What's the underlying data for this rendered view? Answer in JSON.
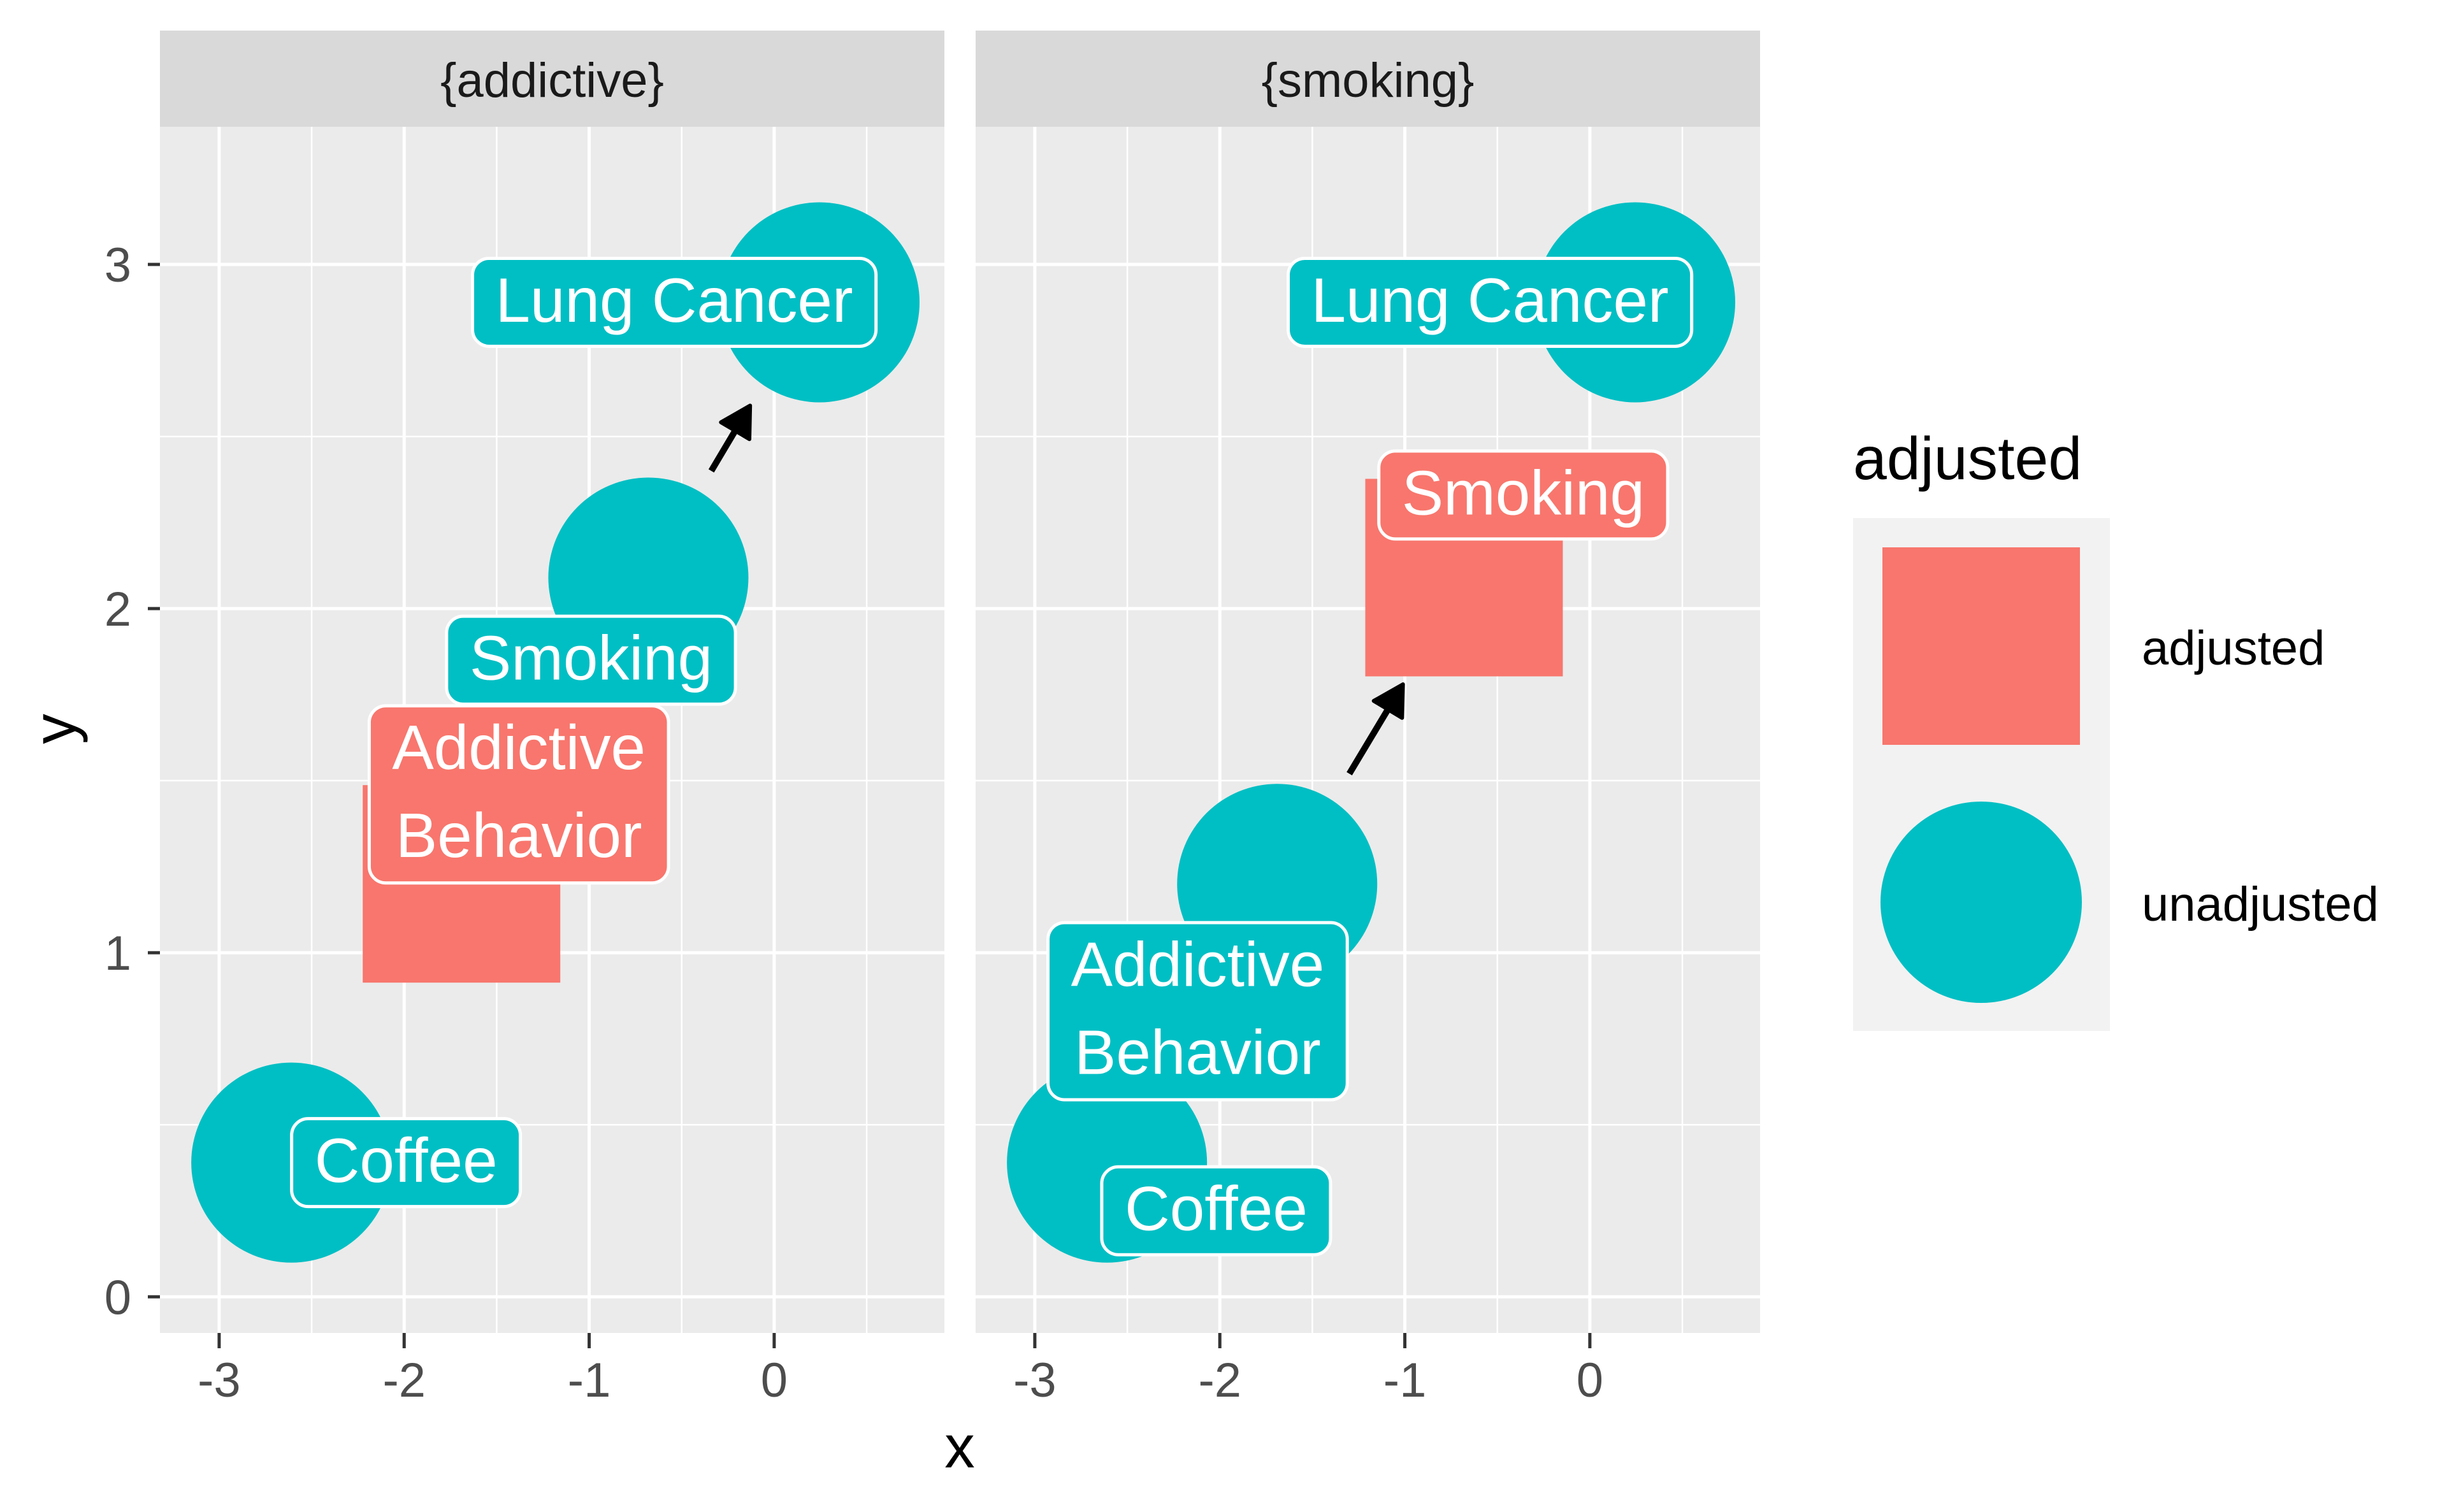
{
  "chart_data": {
    "type": "scatter",
    "subtype": "faceted DAG plot (ggdag adjustment sets)",
    "title": "",
    "xlabel": "x",
    "ylabel": "y",
    "xlim": [
      -3.32,
      0.92
    ],
    "ylim": [
      -0.105,
      3.4
    ],
    "x_ticks": [
      -3,
      -2,
      -1,
      0
    ],
    "x_tick_labels": [
      "-3",
      "-2",
      "-1",
      "0"
    ],
    "y_ticks": [
      0,
      1,
      2,
      3
    ],
    "y_tick_labels": [
      "0",
      "1",
      "2",
      "3"
    ],
    "x_minor": [
      -2.5,
      -1.5,
      -0.5,
      0.5
    ],
    "y_minor": [
      0.5,
      1.5,
      2.5
    ],
    "grid": true,
    "legend": {
      "title": "adjusted",
      "position": "right",
      "entries": [
        {
          "label": "adjusted",
          "shape": "square",
          "color": "#F8766D"
        },
        {
          "label": "unadjusted",
          "shape": "circle",
          "color": "#00BFC4"
        }
      ]
    },
    "colors": {
      "adjusted": "#F8766D",
      "unadjusted": "#00BFC4"
    },
    "nodes": [
      {
        "id": "coffee",
        "name": "Coffee",
        "x": -2.61,
        "y": 0.39
      },
      {
        "id": "addictive",
        "name": "Addictive Behavior",
        "x": -1.69,
        "y": 1.2
      },
      {
        "id": "smoking",
        "name": "Smoking",
        "x": -0.68,
        "y": 2.09
      },
      {
        "id": "lung_cancer",
        "name": "Lung Cancer",
        "x": 0.245,
        "y": 2.89
      }
    ],
    "panels": [
      {
        "strip": "{addictive}",
        "adjusted_node": "addictive",
        "edges": [
          {
            "from": "smoking",
            "to": "lung_cancer",
            "x1": -0.34,
            "y1": 2.4,
            "x2": -0.13,
            "y2": 2.59
          }
        ],
        "labels": [
          {
            "node": "lung_cancer",
            "lines": [
              "Lung Cancer"
            ],
            "x": -0.54,
            "y": 2.89,
            "status": "unadjusted"
          },
          {
            "node": "smoking",
            "lines": [
              "Smoking"
            ],
            "x": -0.99,
            "y": 1.85,
            "status": "unadjusted"
          },
          {
            "node": "addictive",
            "lines": [
              "Addictive",
              "Behavior"
            ],
            "x": -1.38,
            "y": 1.46,
            "status": "adjusted"
          },
          {
            "node": "coffee",
            "lines": [
              "Coffee"
            ],
            "x": -1.99,
            "y": 0.39,
            "status": "unadjusted"
          }
        ]
      },
      {
        "strip": "{smoking}",
        "adjusted_node": "smoking",
        "edges": [
          {
            "from": "addictive",
            "to": "smoking",
            "x1": -1.3,
            "y1": 1.52,
            "x2": -1.01,
            "y2": 1.78
          }
        ],
        "labels": [
          {
            "node": "lung_cancer",
            "lines": [
              "Lung Cancer"
            ],
            "x": -0.54,
            "y": 2.89,
            "status": "unadjusted"
          },
          {
            "node": "smoking",
            "lines": [
              "Smoking"
            ],
            "x": -0.36,
            "y": 2.33,
            "status": "adjusted"
          },
          {
            "node": "addictive",
            "lines": [
              "Addictive",
              "Behavior"
            ],
            "x": -2.12,
            "y": 0.83,
            "status": "unadjusted"
          },
          {
            "node": "coffee",
            "lines": [
              "Coffee"
            ],
            "x": -2.02,
            "y": 0.25,
            "status": "unadjusted"
          }
        ]
      }
    ]
  }
}
